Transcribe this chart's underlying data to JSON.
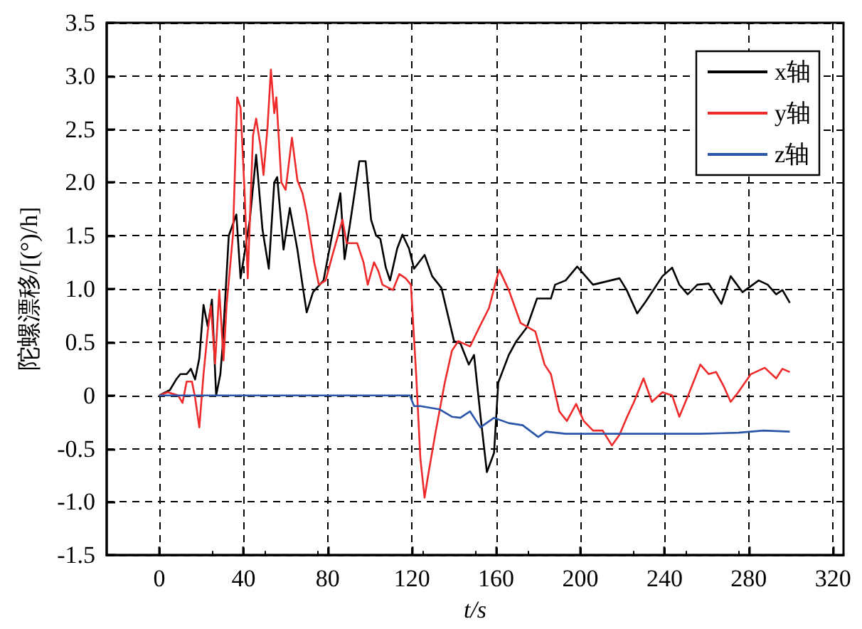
{
  "chart_data": {
    "type": "line",
    "xlabel": "t/s",
    "ylabel": "陀螺漂移/[(°)/h]",
    "xlim": [
      -25,
      325
    ],
    "xticks": [
      0,
      40,
      80,
      120,
      160,
      200,
      240,
      280,
      320
    ],
    "ylim": [
      -1.5,
      3.5
    ],
    "yticks": [
      -1.5,
      {
        "value": -1,
        "label": "-1.0"
      },
      -0.5,
      0,
      0.5,
      {
        "value": 1,
        "label": "1.0"
      },
      1.5,
      {
        "value": 2,
        "label": "2.0"
      },
      2.5,
      {
        "value": 3,
        "label": "3.0"
      },
      3.5
    ],
    "grid": true,
    "legend": "top right",
    "marker": "none",
    "line_style": "solid",
    "series": [
      {
        "name": "x轴",
        "color": "#000000",
        "x": [
          0,
          5,
          8,
          10,
          13,
          15,
          17,
          19,
          21,
          23,
          25,
          27,
          29,
          30,
          33,
          36.6,
          38.6,
          43,
          46,
          49,
          52,
          54.6,
          56,
          59,
          62,
          65.6,
          68,
          70,
          73,
          78,
          82,
          86,
          88,
          90.5,
          95,
          98,
          100.6,
          103,
          105,
          107.6,
          109.6,
          113,
          115.5,
          118.6,
          121,
          126,
          129.6,
          134,
          140,
          143,
          147,
          149.5,
          152.6,
          155.6,
          159,
          161,
          166,
          169.6,
          174.6,
          179.4,
          186,
          188,
          193,
          198.5,
          206,
          218.6,
          222,
          227,
          231,
          239,
          243.6,
          247,
          251,
          255.6,
          261,
          267,
          271.4,
          277,
          284.7,
          289,
          293,
          296,
          299.5
        ],
        "values": [
          0,
          0.05,
          0.15,
          0.2,
          0.2,
          0.25,
          0.15,
          0.35,
          0.85,
          0.65,
          0.9,
          0.0,
          0.2,
          0.45,
          1.5,
          1.7,
          1.1,
          1.65,
          2.26,
          1.56,
          1.19,
          2.0,
          2.05,
          1.37,
          1.76,
          1.37,
          1.04,
          0.78,
          0.97,
          1.08,
          1.5,
          1.9,
          1.28,
          1.6,
          2.2,
          2.2,
          1.65,
          1.5,
          1.47,
          1.2,
          1.08,
          1.38,
          1.51,
          1.38,
          1.19,
          1.32,
          1.12,
          1.01,
          0.51,
          0.49,
          0.29,
          0.38,
          -0.2,
          -0.72,
          -0.54,
          0.12,
          0.38,
          0.51,
          0.64,
          0.91,
          0.91,
          1.04,
          1.08,
          1.21,
          1.04,
          1.1,
          0.99,
          0.77,
          0.88,
          1.12,
          1.2,
          1.04,
          0.95,
          1.04,
          1.05,
          0.86,
          1.12,
          0.97,
          1.08,
          1.04,
          0.95,
          0.99,
          0.87
        ]
      },
      {
        "name": "y轴",
        "color": "#ee2a2a",
        "x": [
          0,
          4,
          9,
          11,
          13,
          15.5,
          17,
          19,
          21,
          23,
          24.5,
          26.5,
          28.5,
          30.5,
          32,
          35,
          37,
          38.6,
          40.6,
          42,
          44.5,
          46,
          48,
          49.5,
          51.4,
          53,
          54.6,
          55.6,
          58,
          60,
          63,
          65.6,
          68,
          70,
          73.6,
          75.8,
          79,
          82,
          87,
          89,
          94,
          97,
          99,
          102,
          104,
          106,
          111,
          114,
          117,
          119.5,
          122,
          124,
          126,
          127.6,
          131,
          135.6,
          139,
          142,
          147.6,
          152,
          156.6,
          160,
          161.5,
          166,
          171.6,
          178.6,
          183,
          186,
          190,
          193.6,
          198,
          201.6,
          206,
          210.6,
          215,
          218.6,
          222,
          225.5,
          230,
          234,
          239,
          243.6,
          247,
          251,
          257,
          261,
          264.5,
          268,
          271.4,
          275,
          281,
          287.6,
          293,
          296,
          299.5
        ],
        "values": [
          0,
          0.03,
          0.0,
          -0.07,
          0.13,
          0.13,
          -0.02,
          -0.3,
          0.2,
          0.6,
          0.84,
          0.3,
          0.99,
          0.33,
          0.86,
          1.51,
          2.8,
          2.7,
          1.87,
          1.1,
          2.44,
          2.6,
          2.35,
          2.07,
          2.52,
          3.06,
          2.65,
          2.8,
          2.0,
          1.93,
          2.42,
          2.02,
          1.9,
          1.71,
          1.25,
          1.04,
          1.08,
          1.3,
          1.65,
          1.43,
          1.43,
          1.25,
          1.04,
          1.25,
          1.17,
          1.04,
          0.99,
          1.14,
          1.1,
          1.04,
          0.2,
          -0.59,
          -0.96,
          -0.76,
          -0.37,
          0.12,
          0.42,
          0.51,
          0.46,
          0.64,
          0.82,
          1.08,
          1.18,
          0.99,
          0.68,
          0.6,
          0.29,
          0.2,
          -0.15,
          -0.24,
          -0.08,
          -0.24,
          -0.33,
          -0.33,
          -0.47,
          -0.37,
          -0.21,
          -0.06,
          0.16,
          -0.06,
          0.03,
          0,
          -0.2,
          -0.01,
          0.29,
          0.2,
          0.22,
          0.09,
          -0.06,
          0.03,
          0.2,
          0.26,
          0.16,
          0.25,
          0.22
        ]
      },
      {
        "name": "z轴",
        "color": "#2a55a8",
        "x": [
          0,
          60,
          119,
          121,
          124,
          133,
          139,
          143,
          147.6,
          152.5,
          159,
          166,
          172.6,
          180,
          183.6,
          193,
          222,
          257,
          275,
          287,
          299.5
        ],
        "values": [
          0,
          0,
          0,
          -0.1,
          -0.1,
          -0.13,
          -0.2,
          -0.21,
          -0.15,
          -0.3,
          -0.21,
          -0.26,
          -0.28,
          -0.39,
          -0.34,
          -0.36,
          -0.36,
          -0.36,
          -0.35,
          -0.33,
          -0.34
        ]
      }
    ]
  }
}
